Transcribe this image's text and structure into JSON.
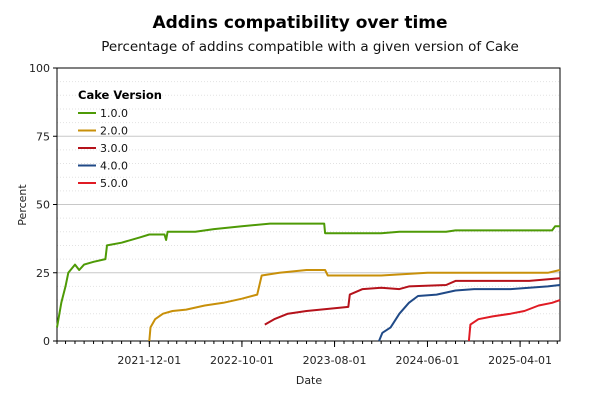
{
  "chart_data": {
    "type": "line",
    "title": "Addins compatibility over time",
    "subtitle": "Percentage of addins compatible with a given version of Cake",
    "xlabel": "Date",
    "ylabel": "Percent",
    "ylim": [
      0,
      100
    ],
    "y_ticks": [
      "0",
      "25",
      "50",
      "75",
      "100"
    ],
    "x_ticks": [
      "2021-12-01",
      "2022-10-01",
      "2023-08-01",
      "2024-06-01",
      "2025-04-01"
    ],
    "grid": "horizontal",
    "legend": {
      "title": "Cake Version",
      "placement": "top-left"
    },
    "series": [
      {
        "name": "1.0.0",
        "color": "#4e9a06",
        "points": [
          [
            "2021-02-01",
            5
          ],
          [
            "2021-02-15",
            14
          ],
          [
            "2021-03-01",
            20
          ],
          [
            "2021-03-10",
            25
          ],
          [
            "2021-04-01",
            28
          ],
          [
            "2021-04-15",
            26
          ],
          [
            "2021-05-01",
            28
          ],
          [
            "2021-06-01",
            29
          ],
          [
            "2021-07-10",
            30
          ],
          [
            "2021-07-15",
            35
          ],
          [
            "2021-09-01",
            36
          ],
          [
            "2021-11-01",
            38
          ],
          [
            "2021-12-01",
            39
          ],
          [
            "2022-01-20",
            39
          ],
          [
            "2022-01-25",
            37
          ],
          [
            "2022-01-30",
            40
          ],
          [
            "2022-05-01",
            40
          ],
          [
            "2022-07-01",
            41
          ],
          [
            "2022-10-01",
            42
          ],
          [
            "2023-01-01",
            43
          ],
          [
            "2023-06-28",
            43
          ],
          [
            "2023-07-01",
            39.5
          ],
          [
            "2024-01-01",
            39.5
          ],
          [
            "2024-03-01",
            40
          ],
          [
            "2024-08-01",
            40
          ],
          [
            "2024-09-01",
            40.5
          ],
          [
            "2025-07-15",
            40.5
          ],
          [
            "2025-07-25",
            42
          ],
          [
            "2025-08-10",
            42
          ]
        ]
      },
      {
        "name": "2.0.0",
        "color": "#c8900a",
        "points": [
          [
            "2021-12-01",
            0
          ],
          [
            "2021-12-05",
            5
          ],
          [
            "2021-12-20",
            8
          ],
          [
            "2022-01-15",
            10
          ],
          [
            "2022-02-15",
            11
          ],
          [
            "2022-04-01",
            11.5
          ],
          [
            "2022-06-01",
            13
          ],
          [
            "2022-08-01",
            14
          ],
          [
            "2022-10-01",
            15.5
          ],
          [
            "2022-11-20",
            17
          ],
          [
            "2022-12-05",
            24
          ],
          [
            "2023-02-01",
            25
          ],
          [
            "2023-05-01",
            26
          ],
          [
            "2023-07-01",
            26
          ],
          [
            "2023-07-10",
            24
          ],
          [
            "2024-01-01",
            24
          ],
          [
            "2024-06-01",
            25
          ],
          [
            "2025-07-01",
            25
          ],
          [
            "2025-08-10",
            26
          ]
        ]
      },
      {
        "name": "3.0.0",
        "color": "#b5121b",
        "points": [
          [
            "2022-12-15",
            6
          ],
          [
            "2023-01-15",
            8
          ],
          [
            "2023-03-01",
            10
          ],
          [
            "2023-05-01",
            11
          ],
          [
            "2023-08-01",
            12
          ],
          [
            "2023-09-15",
            12.5
          ],
          [
            "2023-09-20",
            17
          ],
          [
            "2023-11-01",
            19
          ],
          [
            "2024-01-01",
            19.5
          ],
          [
            "2024-03-01",
            19
          ],
          [
            "2024-04-01",
            20
          ],
          [
            "2024-08-01",
            20.5
          ],
          [
            "2024-09-01",
            22
          ],
          [
            "2025-05-01",
            22
          ],
          [
            "2025-08-10",
            23
          ]
        ]
      },
      {
        "name": "4.0.0",
        "color": "#204a87",
        "points": [
          [
            "2023-12-25",
            0
          ],
          [
            "2024-01-05",
            3
          ],
          [
            "2024-02-01",
            5
          ],
          [
            "2024-03-01",
            10
          ],
          [
            "2024-04-01",
            14
          ],
          [
            "2024-05-01",
            16.5
          ],
          [
            "2024-07-01",
            17
          ],
          [
            "2024-09-01",
            18.5
          ],
          [
            "2024-11-01",
            19
          ],
          [
            "2025-03-01",
            19
          ],
          [
            "2025-05-01",
            19.5
          ],
          [
            "2025-07-01",
            20
          ],
          [
            "2025-08-10",
            20.5
          ]
        ]
      },
      {
        "name": "5.0.0",
        "color": "#e01b24",
        "points": [
          [
            "2024-10-15",
            0
          ],
          [
            "2024-10-20",
            6
          ],
          [
            "2024-11-15",
            8
          ],
          [
            "2025-01-01",
            9
          ],
          [
            "2025-03-01",
            10
          ],
          [
            "2025-04-15",
            11
          ],
          [
            "2025-06-01",
            13
          ],
          [
            "2025-07-15",
            14
          ],
          [
            "2025-08-10",
            15
          ]
        ]
      }
    ]
  }
}
